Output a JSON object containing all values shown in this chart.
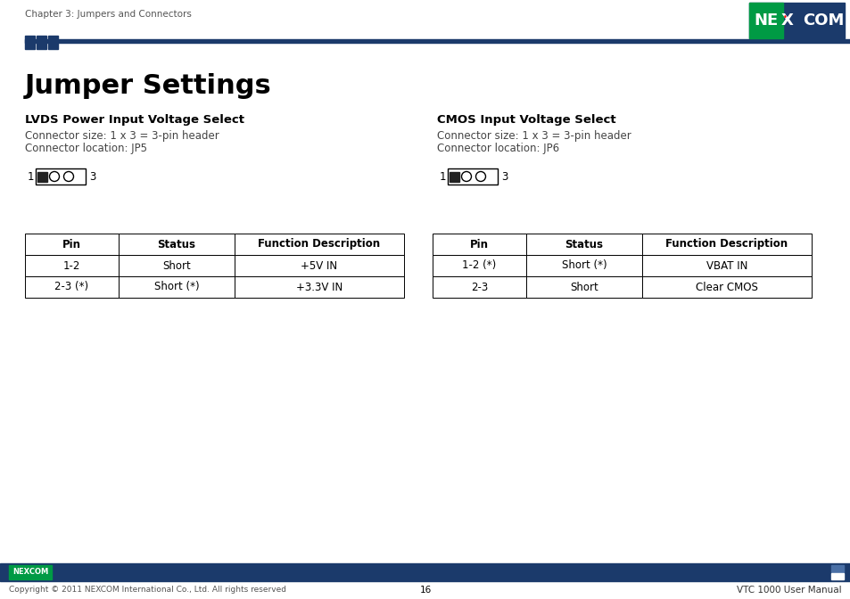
{
  "page_header_text": "Chapter 3: Jumpers and Connectors",
  "page_number": "16",
  "footer_text": "Copyright © 2011 NEXCOM International Co., Ltd. All rights reserved",
  "footer_right": "VTC 1000 User Manual",
  "main_title": "Jumper Settings",
  "section1_title": "LVDS Power Input Voltage Select",
  "section1_line1": "Connector size: 1 x 3 = 3-pin header",
  "section1_line2": "Connector location: JP5",
  "section2_title": "CMOS Input Voltage Select",
  "section2_line1": "Connector size: 1 x 3 = 3-pin header",
  "section2_line2": "Connector location: JP6",
  "table1_headers": [
    "Pin",
    "Status",
    "Function Description"
  ],
  "table1_rows": [
    [
      "1-2",
      "Short",
      "+5V IN"
    ],
    [
      "2-3 (*)",
      "Short (*)",
      "+3.3V IN"
    ]
  ],
  "table2_headers": [
    "Pin",
    "Status",
    "Function Description"
  ],
  "table2_rows": [
    [
      "1-2 (*)",
      "Short (*)",
      "VBAT IN"
    ],
    [
      "2-3",
      "Short",
      "Clear CMOS"
    ]
  ],
  "header_bar_color": "#1b3a6b",
  "nexcom_green": "#009a44",
  "nexcom_blue": "#1b3a6b",
  "text_color": "#000000",
  "gray_text": "#555555",
  "footer_bar_color": "#1b3a6b"
}
